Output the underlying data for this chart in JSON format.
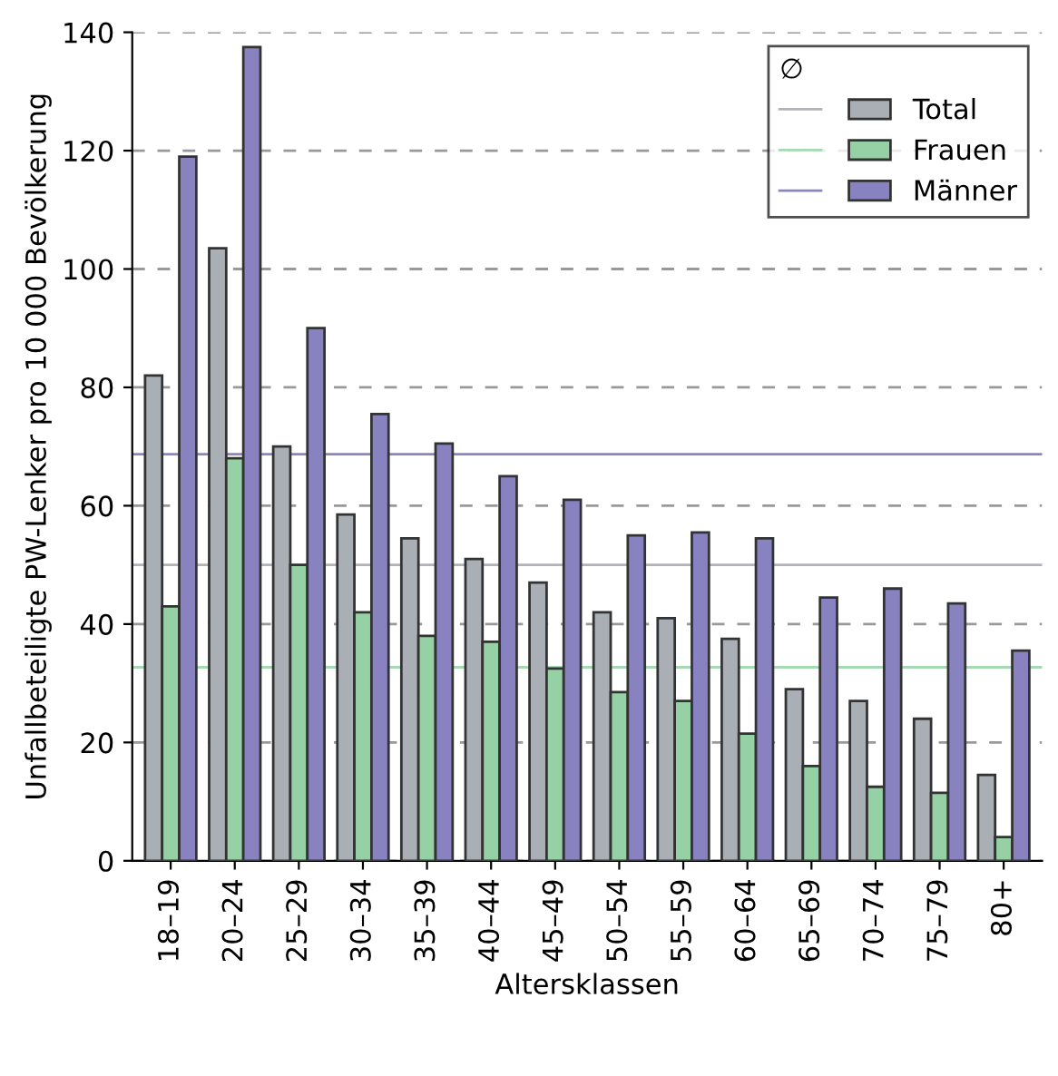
{
  "chart_data": {
    "type": "bar",
    "xlabel": "Altersklassen",
    "ylabel": "Unfallbeteiligte PW-Lenker pro 10 000 Bevölkerung",
    "categories": [
      "18–19",
      "20–24",
      "25–29",
      "30–34",
      "35–39",
      "40–44",
      "45–49",
      "50–54",
      "55–59",
      "60–64",
      "65–69",
      "70–74",
      "75–79",
      "80+"
    ],
    "series": [
      {
        "name": "Total",
        "color": "#a9afb5",
        "values": [
          82,
          103.5,
          70,
          58.5,
          54.5,
          51,
          47,
          42,
          41,
          37.5,
          29,
          27,
          24,
          14.5
        ]
      },
      {
        "name": "Frauen",
        "color": "#96d1a5",
        "values": [
          43,
          68,
          50,
          42,
          38,
          37,
          32.5,
          28.5,
          27,
          21.5,
          16,
          12.5,
          11.5,
          4
        ]
      },
      {
        "name": "Männer",
        "color": "#8883c0",
        "values": [
          119,
          137.5,
          90,
          75.5,
          70.5,
          65,
          61,
          55,
          55.5,
          54.5,
          44.5,
          46,
          43.5,
          35.5
        ]
      }
    ],
    "ref_lines": [
      {
        "axis": "y",
        "value": 50,
        "color": "#b0b4ba"
      },
      {
        "axis": "y",
        "value": 32.7,
        "color": "#a6dab4"
      },
      {
        "axis": "y",
        "value": 68.7,
        "color": "#8a86c0"
      }
    ],
    "legend_title": "∅",
    "legend": "top right",
    "ylim": [
      0,
      140
    ],
    "yticks": [
      0,
      20,
      40,
      60,
      80,
      100,
      120,
      140
    ],
    "grid": "y"
  }
}
